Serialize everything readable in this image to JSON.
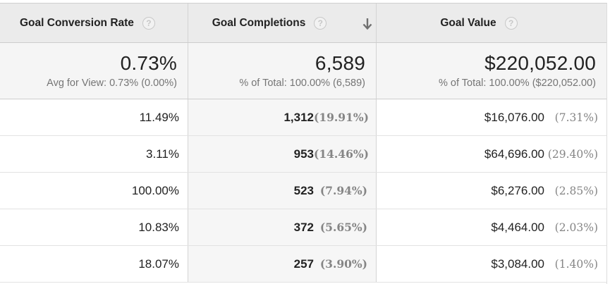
{
  "headers": {
    "col1": "Goal Conversion Rate",
    "col2": "Goal Completions",
    "col3": "Goal Value"
  },
  "summary": {
    "col1": {
      "value": "0.73%",
      "sub": "Avg for View: 0.73% (0.00%)"
    },
    "col2": {
      "value": "6,589",
      "sub": "% of Total: 100.00% (6,589)"
    },
    "col3": {
      "value": "$220,052.00",
      "sub": "% of Total: 100.00% ($220,052.00)"
    }
  },
  "rows": [
    {
      "rate": "11.49%",
      "completions": "1,312",
      "completions_pct": "(19.91%)",
      "value": "$16,076.00",
      "value_pct": "(7.31%)"
    },
    {
      "rate": "3.11%",
      "completions": "953",
      "completions_pct": "(14.46%)",
      "value": "$64,696.00",
      "value_pct": "(29.40%)"
    },
    {
      "rate": "100.00%",
      "completions": "523",
      "completions_pct": "(7.94%)",
      "value": "$6,276.00",
      "value_pct": "(2.85%)"
    },
    {
      "rate": "10.83%",
      "completions": "372",
      "completions_pct": "(5.65%)",
      "value": "$4,464.00",
      "value_pct": "(2.03%)"
    },
    {
      "rate": "18.07%",
      "completions": "257",
      "completions_pct": "(3.90%)",
      "value": "$3,084.00",
      "value_pct": "(1.40%)"
    }
  ],
  "icons": {
    "help": "help-icon",
    "sort": "arrow-down-icon"
  },
  "help_glyph": "?"
}
